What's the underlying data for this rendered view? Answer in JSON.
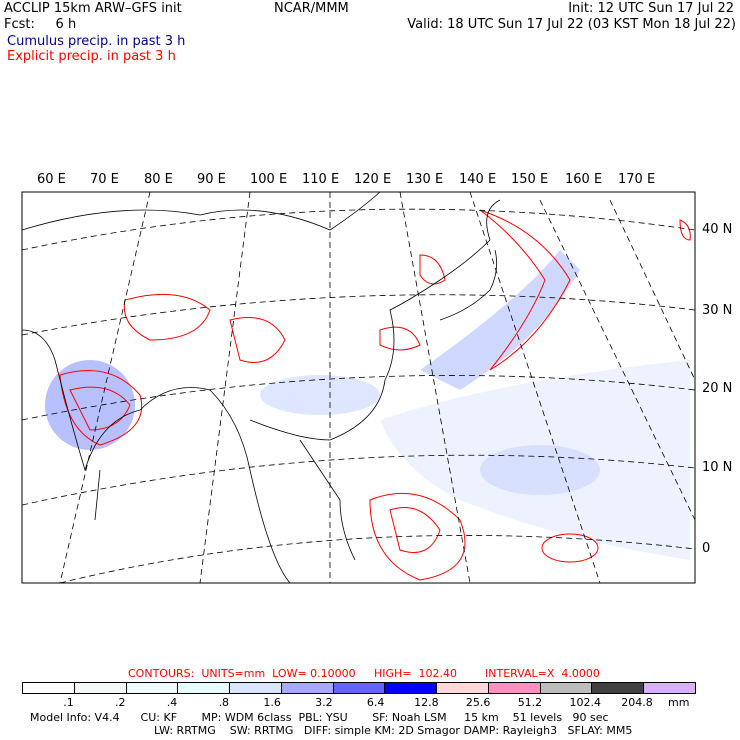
{
  "header": {
    "title": "ACCLIP 15km ARW–GFS init",
    "center": "NCAR/MMM",
    "init": "Init: 12 UTC Sun 17 Jul 22",
    "fcst": "Fcst:     6 h",
    "valid": "Valid: 18 UTC Sun 17 Jul 22 (03 KST Mon 18 Jul 22)",
    "legend_cumulus": "Cumulus precip. in past 3 h",
    "legend_explicit": "Explicit precip. in past 3 h"
  },
  "map": {
    "lon_labels": [
      "60 E",
      "70 E",
      "80 E",
      "90 E",
      "100 E",
      "110 E",
      "120 E",
      "130 E",
      "140 E",
      "150 E",
      "160 E",
      "170 E"
    ],
    "lat_labels": [
      "40 N",
      "30 N",
      "20 N",
      "10 N",
      "0"
    ]
  },
  "contours": {
    "units": "CONTOURS:  UNITS=mm  LOW= 0.10000",
    "high": "HIGH=  102.40",
    "interval": "INTERVAL=X  4.0000"
  },
  "colorbar": {
    "colors": [
      "#ffffff",
      "#f4fafa",
      "#eefcfc",
      "#e6fefe",
      "#d8e6ff",
      "#a8a8ff",
      "#6464ff",
      "#0000ff",
      "#ffd8d8",
      "#ff90c0",
      "#bcbcbc",
      "#404040",
      "#d8b0ff"
    ],
    "labels": [
      ".1",
      ".2",
      ".4",
      ".8",
      "1.6",
      "3.2",
      "6.4",
      "12.8",
      "25.6",
      "51.2",
      "102.4",
      "204.8"
    ],
    "unit": "mm"
  },
  "footer": {
    "line1": "Model Info: V4.4      CU: KF       MP: WDM 6class  PBL: YSU       SF: Noah LSM     15 km    51 levels   90 sec",
    "line2": "LW: RRTMG    SW: RRTMG   DIFF: simple KM: 2D Smagor DAMP: Rayleigh3   SFLAY: MM5"
  }
}
